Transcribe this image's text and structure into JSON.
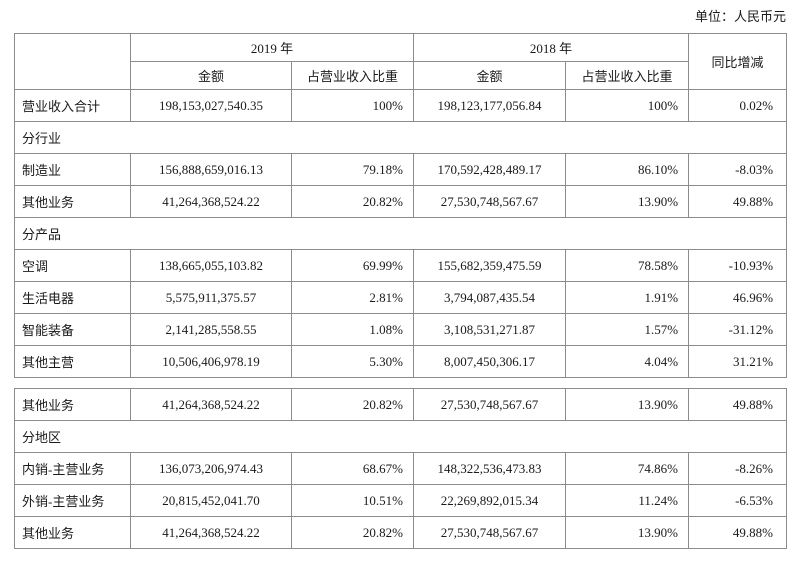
{
  "unit_label": "单位：人民币元",
  "header": {
    "year_2019": "2019 年",
    "year_2018": "2018 年",
    "yoy": "同比增减",
    "amount": "金额",
    "ratio": "占营业收入比重"
  },
  "tables": [
    {
      "rows": [
        {
          "type": "data",
          "label": "营业收入合计",
          "cells": [
            "198,153,027,540.35",
            "100%",
            "198,123,177,056.84",
            "100%",
            "0.02%"
          ]
        },
        {
          "type": "section",
          "label": "分行业"
        },
        {
          "type": "data",
          "label": "制造业",
          "cells": [
            "156,888,659,016.13",
            "79.18%",
            "170,592,428,489.17",
            "86.10%",
            "-8.03%"
          ]
        },
        {
          "type": "data",
          "label": "其他业务",
          "cells": [
            "41,264,368,524.22",
            "20.82%",
            "27,530,748,567.67",
            "13.90%",
            "49.88%"
          ]
        },
        {
          "type": "section",
          "label": "分产品"
        },
        {
          "type": "data",
          "label": "空调",
          "cells": [
            "138,665,055,103.82",
            "69.99%",
            "155,682,359,475.59",
            "78.58%",
            "-10.93%"
          ]
        },
        {
          "type": "data",
          "label": "生活电器",
          "cells": [
            "5,575,911,375.57",
            "2.81%",
            "3,794,087,435.54",
            "1.91%",
            "46.96%"
          ]
        },
        {
          "type": "data",
          "label": "智能装备",
          "cells": [
            "2,141,285,558.55",
            "1.08%",
            "3,108,531,271.87",
            "1.57%",
            "-31.12%"
          ]
        },
        {
          "type": "data",
          "label": "其他主营",
          "cells": [
            "10,506,406,978.19",
            "5.30%",
            "8,007,450,306.17",
            "4.04%",
            "31.21%"
          ]
        }
      ]
    },
    {
      "rows": [
        {
          "type": "data",
          "label": "其他业务",
          "cells": [
            "41,264,368,524.22",
            "20.82%",
            "27,530,748,567.67",
            "13.90%",
            "49.88%"
          ]
        },
        {
          "type": "section",
          "label": "分地区"
        },
        {
          "type": "data",
          "label": "内销-主营业务",
          "cells": [
            "136,073,206,974.43",
            "68.67%",
            "148,322,536,473.83",
            "74.86%",
            "-8.26%"
          ]
        },
        {
          "type": "data",
          "label": "外销-主营业务",
          "cells": [
            "20,815,452,041.70",
            "10.51%",
            "22,269,892,015.34",
            "11.24%",
            "-6.53%"
          ]
        },
        {
          "type": "data",
          "label": "其他业务",
          "cells": [
            "41,264,368,524.22",
            "20.82%",
            "27,530,748,567.67",
            "13.90%",
            "49.88%"
          ]
        }
      ]
    }
  ]
}
